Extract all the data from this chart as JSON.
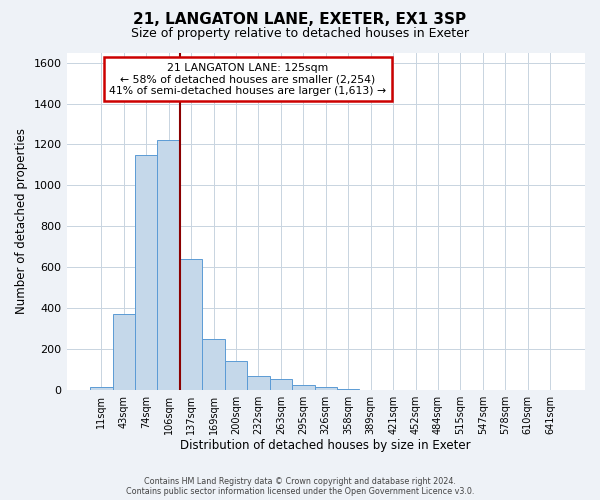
{
  "title": "21, LANGATON LANE, EXETER, EX1 3SP",
  "subtitle": "Size of property relative to detached houses in Exeter",
  "xlabel": "Distribution of detached houses by size in Exeter",
  "ylabel": "Number of detached properties",
  "bin_labels": [
    "11sqm",
    "43sqm",
    "74sqm",
    "106sqm",
    "137sqm",
    "169sqm",
    "200sqm",
    "232sqm",
    "263sqm",
    "295sqm",
    "326sqm",
    "358sqm",
    "389sqm",
    "421sqm",
    "452sqm",
    "484sqm",
    "515sqm",
    "547sqm",
    "578sqm",
    "610sqm",
    "641sqm"
  ],
  "bin_values": [
    15,
    370,
    1150,
    1220,
    640,
    250,
    140,
    65,
    50,
    25,
    15,
    5,
    0,
    0,
    0,
    0,
    0,
    0,
    0,
    0,
    0
  ],
  "bar_color": "#c5d8ea",
  "bar_edge_color": "#5b9bd5",
  "vline_color": "#8b0000",
  "ylim": [
    0,
    1650
  ],
  "yticks": [
    0,
    200,
    400,
    600,
    800,
    1000,
    1200,
    1400,
    1600
  ],
  "annotation_title": "21 LANGATON LANE: 125sqm",
  "annotation_line1": "← 58% of detached houses are smaller (2,254)",
  "annotation_line2": "41% of semi-detached houses are larger (1,613) →",
  "annotation_box_color": "#ffffff",
  "annotation_box_edge_color": "#cc0000",
  "footer1": "Contains HM Land Registry data © Crown copyright and database right 2024.",
  "footer2": "Contains public sector information licensed under the Open Government Licence v3.0.",
  "background_color": "#eef2f7",
  "plot_background": "#ffffff",
  "grid_color": "#c8d4e0"
}
